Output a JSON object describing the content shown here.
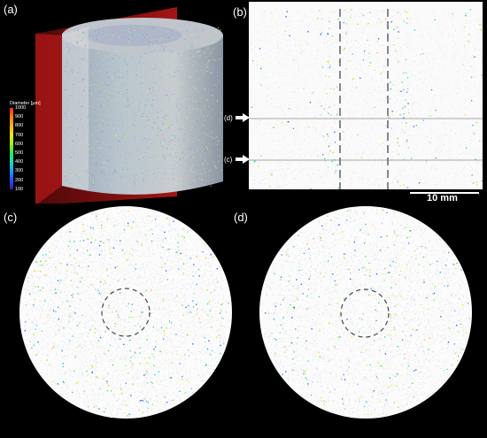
{
  "figure": {
    "panels": [
      {
        "id": "a",
        "label": "(a)"
      },
      {
        "id": "b",
        "label": "(b)"
      },
      {
        "id": "c",
        "label": "(c)"
      },
      {
        "id": "d",
        "label": "(d)"
      }
    ],
    "colorbar": {
      "title": "Diameter [μm]",
      "ticks": [
        "1000",
        "900",
        "800",
        "700",
        "600",
        "500",
        "400",
        "300",
        "200",
        "100"
      ],
      "colors": [
        "#ff2a1a",
        "#ff7a1a",
        "#ffb21a",
        "#e8e81a",
        "#9cf01a",
        "#2ce84a",
        "#1ad8c8",
        "#1a9cff",
        "#2a4cff",
        "#3a1aa0"
      ]
    },
    "slice_markers": [
      {
        "label": "(d)"
      },
      {
        "label": "(c)"
      }
    ],
    "scale_bar": {
      "label": "10 mm"
    }
  }
}
